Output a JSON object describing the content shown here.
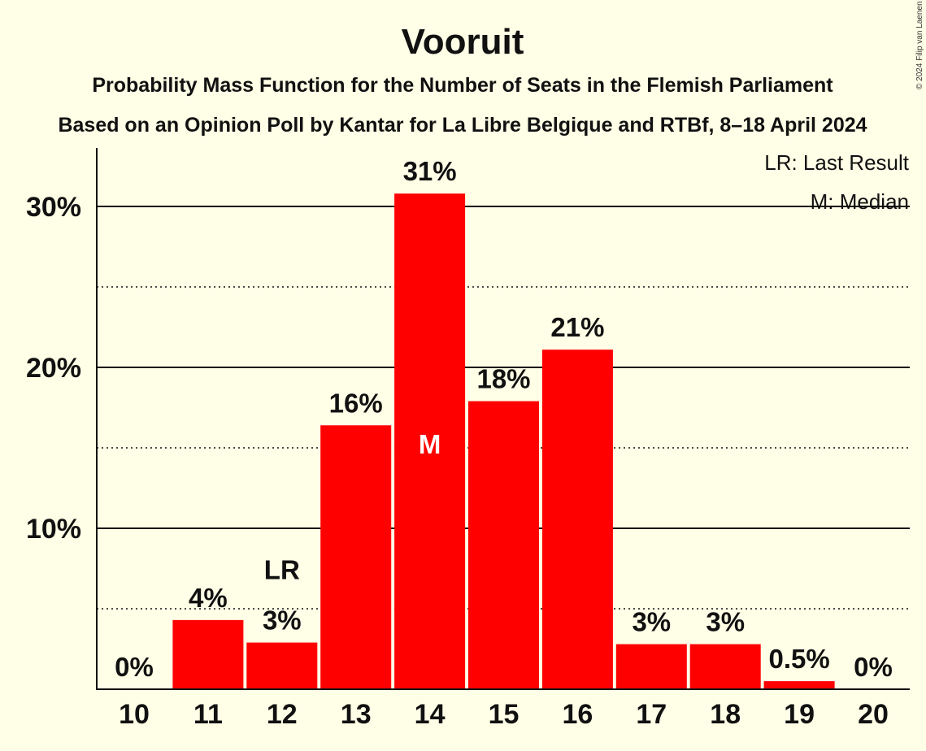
{
  "chart_data": {
    "type": "bar",
    "title": "Vooruit",
    "subtitle": "Probability Mass Function for the Number of Seats in the Flemish Parliament",
    "subtitle2": "Based on an Opinion Poll by Kantar for La Libre Belgique and RTBf, 8–18 April 2024",
    "copyright": "© 2024 Filip van Laenen",
    "categories": [
      "10",
      "11",
      "12",
      "13",
      "14",
      "15",
      "16",
      "17",
      "18",
      "19",
      "20"
    ],
    "values": [
      0,
      4.3,
      2.9,
      16.4,
      30.8,
      17.9,
      21.1,
      2.8,
      2.8,
      0.5,
      0
    ],
    "value_labels": [
      "0%",
      "4%",
      "3%",
      "16%",
      "31%",
      "18%",
      "21%",
      "3%",
      "3%",
      "0.5%",
      "0%"
    ],
    "ylim": [
      0,
      33.5
    ],
    "yticks": [
      10,
      20,
      30
    ],
    "ytick_labels": [
      "10%",
      "20%",
      "30%"
    ],
    "minor_gridlines": [
      5,
      15,
      25
    ],
    "last_result_category": "12",
    "last_result_marker": "LR",
    "median_category": "14",
    "median_marker": "M",
    "legend": [
      "LR: Last Result",
      "M: Median"
    ],
    "legend_position": "top-right",
    "bar_color": "#FF0000"
  }
}
